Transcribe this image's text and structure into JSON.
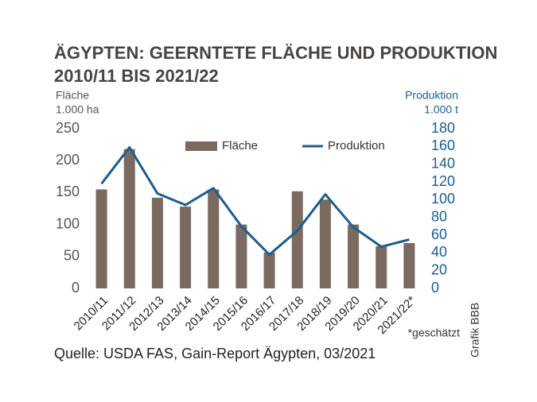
{
  "chart_data": {
    "type": "bar",
    "title": "ÄGYPTEN: GEERNTETE FLÄCHE UND PRODUKTION",
    "subtitle": "2010/11 BIS 2021/22",
    "y_label": [
      "Fläche",
      "1.000 ha"
    ],
    "y2_label": [
      "Produktion",
      "1.000 t"
    ],
    "categories": [
      "2010/11",
      "2011/12",
      "2012/13",
      "2013/14",
      "2014/15",
      "2015/16",
      "2016/17",
      "2017/18",
      "2018/19",
      "2019/20",
      "2020/21",
      "2021/22*"
    ],
    "series": [
      {
        "name": "Fläche",
        "type": "bar",
        "color": "#7a6a60",
        "values": [
          155,
          218,
          142,
          128,
          155,
          100,
          56,
          152,
          139,
          100,
          66,
          71
        ]
      },
      {
        "name": "Produktion",
        "type": "line",
        "axis": "y2",
        "color": "#1f5c8c",
        "values": [
          118,
          159,
          107,
          94,
          113,
          70,
          38,
          65,
          106,
          69,
          47,
          55
        ]
      }
    ],
    "ylim": [
      0,
      250
    ],
    "yticks": [
      0,
      50,
      100,
      150,
      200,
      250
    ],
    "y2lim": [
      0,
      180
    ],
    "y2ticks": [
      0,
      20,
      40,
      60,
      80,
      100,
      120,
      140,
      160,
      180
    ],
    "grid": false,
    "note": "*geschätzt",
    "source": "Quelle: USDA FAS, Gain-Report Ägypten, 03/2021",
    "credit": "Grafik BBB"
  }
}
